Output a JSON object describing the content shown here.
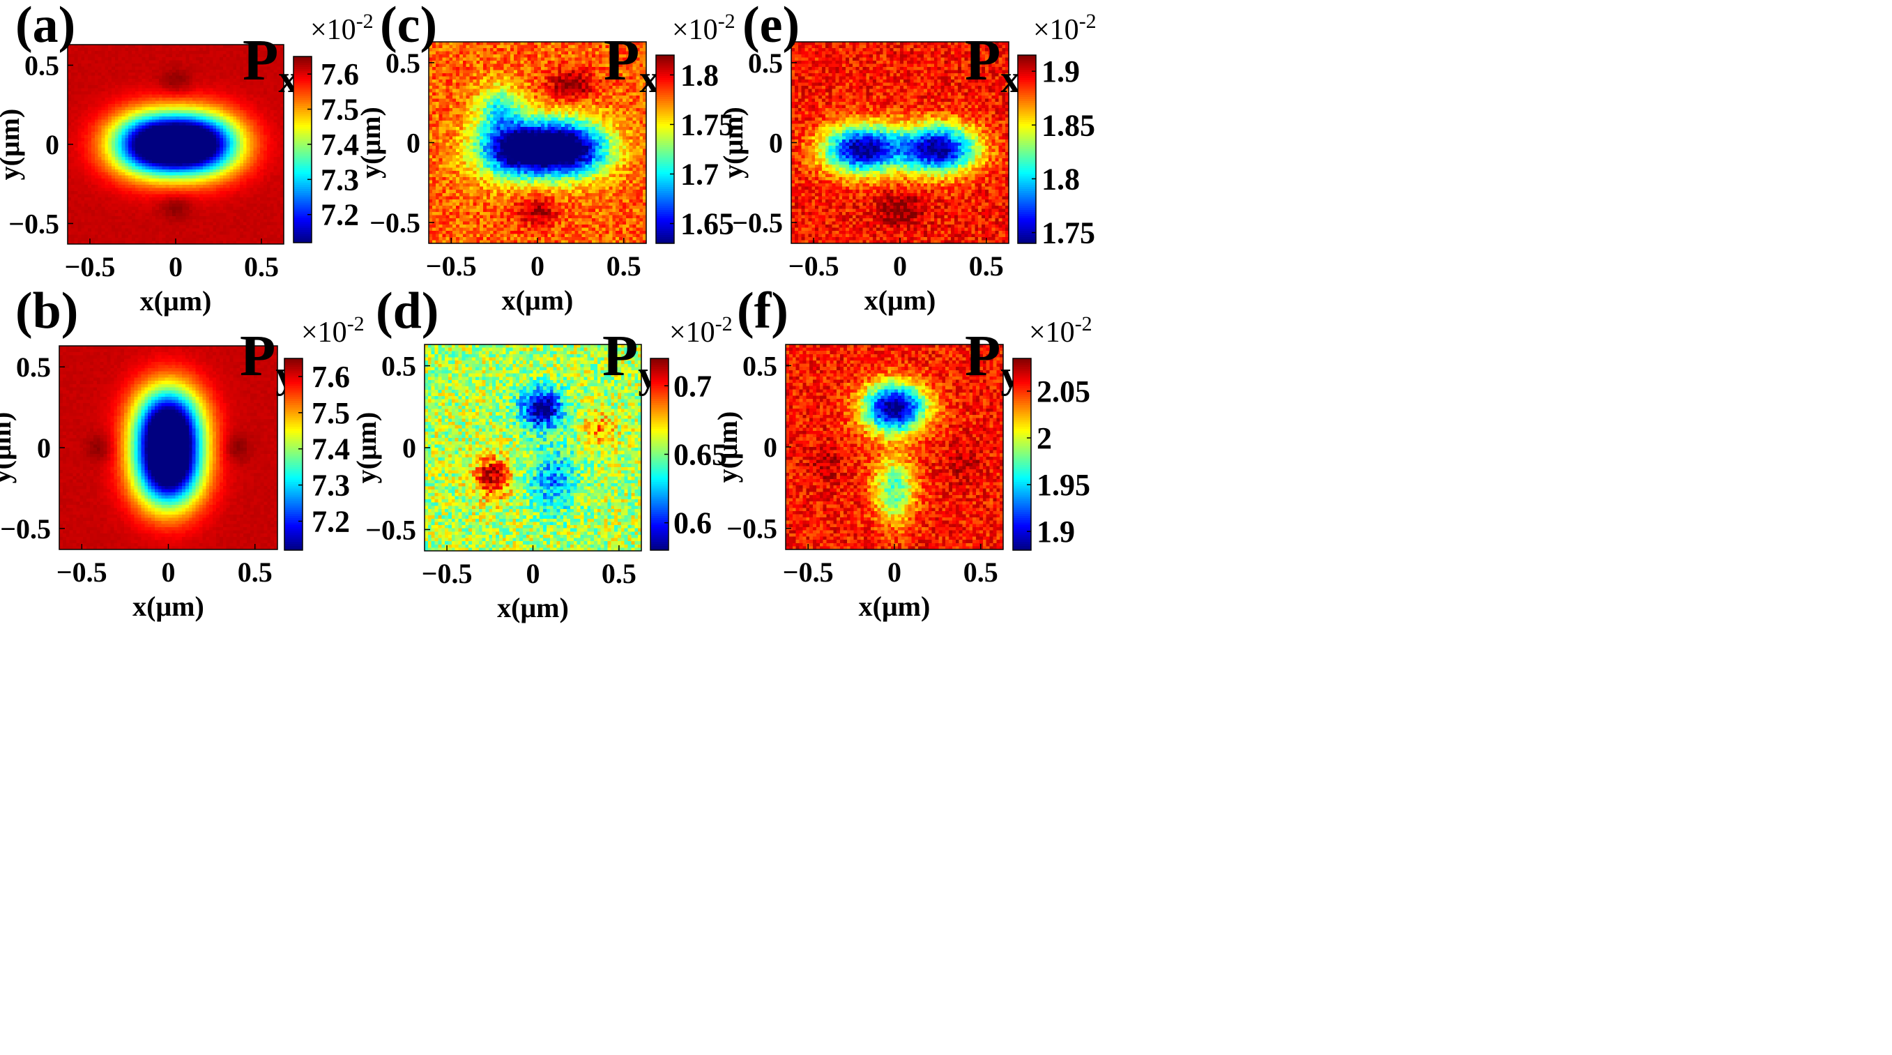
{
  "chart_data": [
    {
      "type": "heatmap",
      "panel": "(a)",
      "title": "P",
      "title_sub": "x",
      "xlabel": "x(μm)",
      "ylabel": "y(μm)",
      "xlim": [
        -0.63,
        0.63
      ],
      "ylim": [
        -0.63,
        0.63
      ],
      "xticks": [
        -0.5,
        0,
        0.5
      ],
      "xtick_labels": [
        "−0.5",
        "0",
        "0.5"
      ],
      "yticks": [
        0.5,
        0,
        -0.5
      ],
      "ytick_labels": [
        "0.5",
        "0",
        "−0.5"
      ],
      "colorbar": {
        "multiplier": "×10",
        "exponent": "-2",
        "min": 7.12,
        "max": 7.65,
        "ticks": [
          7.6,
          7.5,
          7.4,
          7.3,
          7.2
        ],
        "tick_labels": [
          "7.6",
          "7.5",
          "7.4",
          "7.3",
          "7.2"
        ]
      },
      "field": {
        "pattern": "bar-x",
        "noise": 0.01
      }
    },
    {
      "type": "heatmap",
      "panel": "(b)",
      "title": "P",
      "title_sub": "y",
      "xlabel": "x(μm)",
      "ylabel": "y(μm)",
      "xlim": [
        -0.63,
        0.63
      ],
      "ylim": [
        -0.63,
        0.63
      ],
      "xticks": [
        -0.5,
        0,
        0.5
      ],
      "xtick_labels": [
        "−0.5",
        "0",
        "0.5"
      ],
      "yticks": [
        0.5,
        0,
        -0.5
      ],
      "ytick_labels": [
        "0.5",
        "0",
        "−0.5"
      ],
      "colorbar": {
        "multiplier": "×10",
        "exponent": "-2",
        "min": 7.12,
        "max": 7.65,
        "ticks": [
          7.6,
          7.5,
          7.4,
          7.3,
          7.2
        ],
        "tick_labels": [
          "7.6",
          "7.5",
          "7.4",
          "7.3",
          "7.2"
        ]
      },
      "field": {
        "pattern": "bar-y",
        "noise": 0.01
      }
    },
    {
      "type": "heatmap",
      "panel": "(c)",
      "title": "P",
      "title_sub": "x",
      "xlabel": "x(μm)",
      "ylabel": "y(μm)",
      "xlim": [
        -0.63,
        0.63
      ],
      "ylim": [
        -0.63,
        0.63
      ],
      "xticks": [
        -0.5,
        0,
        0.5
      ],
      "xtick_labels": [
        "−0.5",
        "0",
        "0.5"
      ],
      "yticks": [
        0.5,
        0,
        -0.5
      ],
      "ytick_labels": [
        "0.5",
        "0",
        "−0.5"
      ],
      "colorbar": {
        "multiplier": "×10",
        "exponent": "-2",
        "min": 1.63,
        "max": 1.82,
        "ticks": [
          1.8,
          1.75,
          1.7,
          1.65
        ],
        "tick_labels": [
          "1.8",
          "1.75",
          "1.7",
          "1.65"
        ]
      },
      "field": {
        "pattern": "c",
        "noise": 0.09
      }
    },
    {
      "type": "heatmap",
      "panel": "(d)",
      "title": "P",
      "title_sub": "y",
      "xlabel": "x(μm)",
      "ylabel": "y(μm)",
      "xlim": [
        -0.63,
        0.63
      ],
      "ylim": [
        -0.63,
        0.63
      ],
      "xticks": [
        -0.5,
        0,
        0.5
      ],
      "xtick_labels": [
        "−0.5",
        "0",
        "0.5"
      ],
      "yticks": [
        0.5,
        0,
        -0.5
      ],
      "ytick_labels": [
        "0.5",
        "0",
        "−0.5"
      ],
      "colorbar": {
        "multiplier": "×10",
        "exponent": "-2",
        "min": 0.58,
        "max": 0.72,
        "ticks": [
          0.7,
          0.65,
          0.6
        ],
        "tick_labels": [
          "0.7",
          "0.65",
          "0.6"
        ]
      },
      "field": {
        "pattern": "d",
        "noise": 0.14
      }
    },
    {
      "type": "heatmap",
      "panel": "(e)",
      "title": "P",
      "title_sub": "x",
      "xlabel": "x(μm)",
      "ylabel": "y(μm)",
      "xlim": [
        -0.63,
        0.63
      ],
      "ylim": [
        -0.63,
        0.63
      ],
      "xticks": [
        -0.5,
        0,
        0.5
      ],
      "xtick_labels": [
        "−0.5",
        "0",
        "0.5"
      ],
      "yticks": [
        0.5,
        0,
        -0.5
      ],
      "ytick_labels": [
        "0.5",
        "0",
        "−0.5"
      ],
      "colorbar": {
        "multiplier": "×10",
        "exponent": "-2",
        "min": 1.74,
        "max": 1.915,
        "ticks": [
          1.9,
          1.85,
          1.8,
          1.75
        ],
        "tick_labels": [
          "1.9",
          "1.85",
          "1.8",
          "1.75"
        ]
      },
      "field": {
        "pattern": "e",
        "noise": 0.09
      }
    },
    {
      "type": "heatmap",
      "panel": "(f)",
      "title": "P",
      "title_sub": "y",
      "xlabel": "x(μm)",
      "ylabel": "y(μm)",
      "xlim": [
        -0.63,
        0.63
      ],
      "ylim": [
        -0.63,
        0.63
      ],
      "xticks": [
        -0.5,
        0,
        0.5
      ],
      "xtick_labels": [
        "−0.5",
        "0",
        "0.5"
      ],
      "yticks": [
        0.5,
        0,
        -0.5
      ],
      "ytick_labels": [
        "0.5",
        "0",
        "−0.5"
      ],
      "colorbar": {
        "multiplier": "×10",
        "exponent": "-2",
        "min": 1.88,
        "max": 2.085,
        "ticks": [
          2.05,
          2,
          1.95,
          1.9
        ],
        "tick_labels": [
          "2.05",
          "2",
          "1.95",
          "1.9"
        ]
      },
      "field": {
        "pattern": "f",
        "noise": 0.09
      }
    }
  ]
}
